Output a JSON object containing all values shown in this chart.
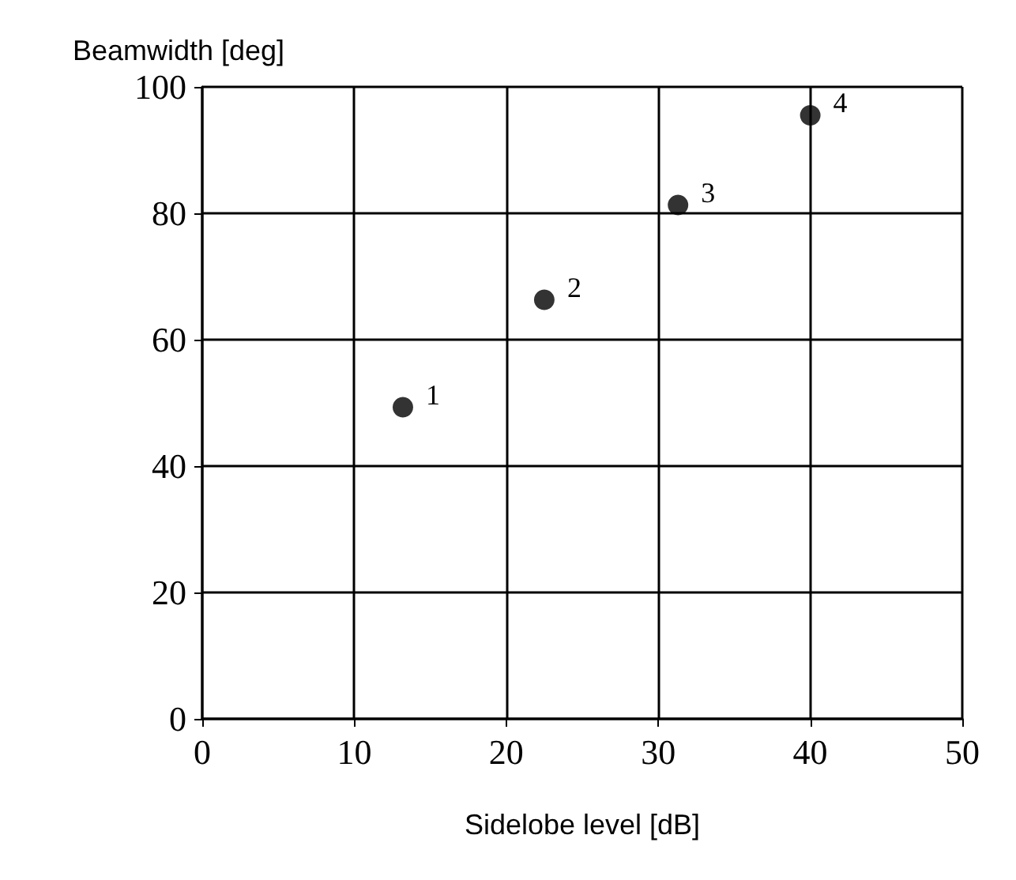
{
  "chart_data": {
    "type": "scatter",
    "xlabel": "Sidelobe level [dB]",
    "ylabel": "Beamwidth [deg]",
    "x": [
      13.2,
      22.5,
      31.3,
      40
    ],
    "values": [
      49.3,
      66.3,
      81.3,
      95.5
    ],
    "annotations": [
      {
        "text": "1",
        "x": 13.2,
        "y": 49.3
      },
      {
        "text": "2",
        "x": 22.5,
        "y": 66.3
      },
      {
        "text": "3",
        "x": 31.3,
        "y": 81.3
      },
      {
        "text": "4",
        "x": 40,
        "y": 95.5
      }
    ],
    "color": "#000000",
    "marker": "circle",
    "grid": true,
    "xlim": [
      0,
      50
    ],
    "xticks": [
      0,
      10,
      20,
      30,
      40,
      50
    ],
    "ylim": [
      0,
      100
    ],
    "yticks": [
      0,
      20,
      40,
      60,
      80,
      100
    ]
  }
}
